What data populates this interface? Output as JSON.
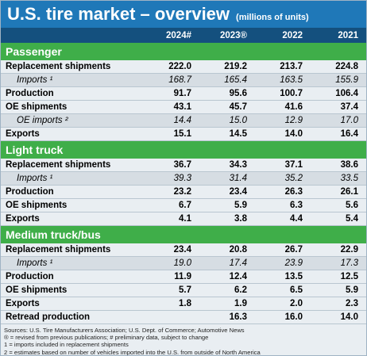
{
  "header": {
    "title": "U.S. tire market – overview",
    "subtitle": "(millions of units)"
  },
  "table": {
    "columns": [
      "2024#",
      "2023®",
      "2022",
      "2021"
    ],
    "sections": [
      {
        "name": "Passenger",
        "rows": [
          {
            "label": "Replacement shipments",
            "cells": [
              "222.0",
              "219.2",
              "213.7",
              "224.8"
            ]
          },
          {
            "label": "Imports ¹",
            "sub": true,
            "cells": [
              "168.7",
              "165.4",
              "163.5",
              "155.9"
            ]
          },
          {
            "label": "Production",
            "cells": [
              "91.7",
              "95.6",
              "100.7",
              "106.4"
            ]
          },
          {
            "label": "OE shipments",
            "cells": [
              "43.1",
              "45.7",
              "41.6",
              "37.4"
            ]
          },
          {
            "label": "OE imports ²",
            "sub": true,
            "cells": [
              "14.4",
              "15.0",
              "12.9",
              "17.0"
            ]
          },
          {
            "label": "Exports",
            "cells": [
              "15.1",
              "14.5",
              "14.0",
              "16.4"
            ]
          }
        ]
      },
      {
        "name": "Light truck",
        "rows": [
          {
            "label": "Replacement shipments",
            "cells": [
              "36.7",
              "34.3",
              "37.1",
              "38.6"
            ]
          },
          {
            "label": "Imports ¹",
            "sub": true,
            "cells": [
              "39.3",
              "31.4",
              "35.2",
              "33.5"
            ]
          },
          {
            "label": "Production",
            "cells": [
              "23.2",
              "23.4",
              "26.3",
              "26.1"
            ]
          },
          {
            "label": "OE shipments",
            "cells": [
              "6.7",
              "5.9",
              "6.3",
              "5.6"
            ]
          },
          {
            "label": "Exports",
            "cells": [
              "4.1",
              "3.8",
              "4.4",
              "5.4"
            ]
          }
        ]
      },
      {
        "name": "Medium truck/bus",
        "rows": [
          {
            "label": "Replacement shipments",
            "cells": [
              "23.4",
              "20.8",
              "26.7",
              "22.9"
            ]
          },
          {
            "label": "Imports ¹",
            "sub": true,
            "cells": [
              "19.0",
              "17.4",
              "23.9",
              "17.3"
            ]
          },
          {
            "label": "Production",
            "cells": [
              "11.9",
              "12.4",
              "13.5",
              "12.5"
            ]
          },
          {
            "label": "OE shipments",
            "cells": [
              "5.7",
              "6.2",
              "6.5",
              "5.9"
            ]
          },
          {
            "label": "Exports",
            "cells": [
              "1.8",
              "1.9",
              "2.0",
              "2.3"
            ]
          },
          {
            "label": "Retread production",
            "cells": [
              null,
              "16.3",
              "16.0",
              "14.0"
            ]
          }
        ]
      }
    ]
  },
  "footnotes": [
    "Sources: U.S. Tire Manufacturers Association; U.S. Dept. of Commerce; Automotive News",
    "® = revised from previous publications; # preliminary data, subject to change",
    "1 = imports included in replacement shipments",
    "2 = estimates based on number of vehicles imported into the U.S. from outside of North America"
  ]
}
